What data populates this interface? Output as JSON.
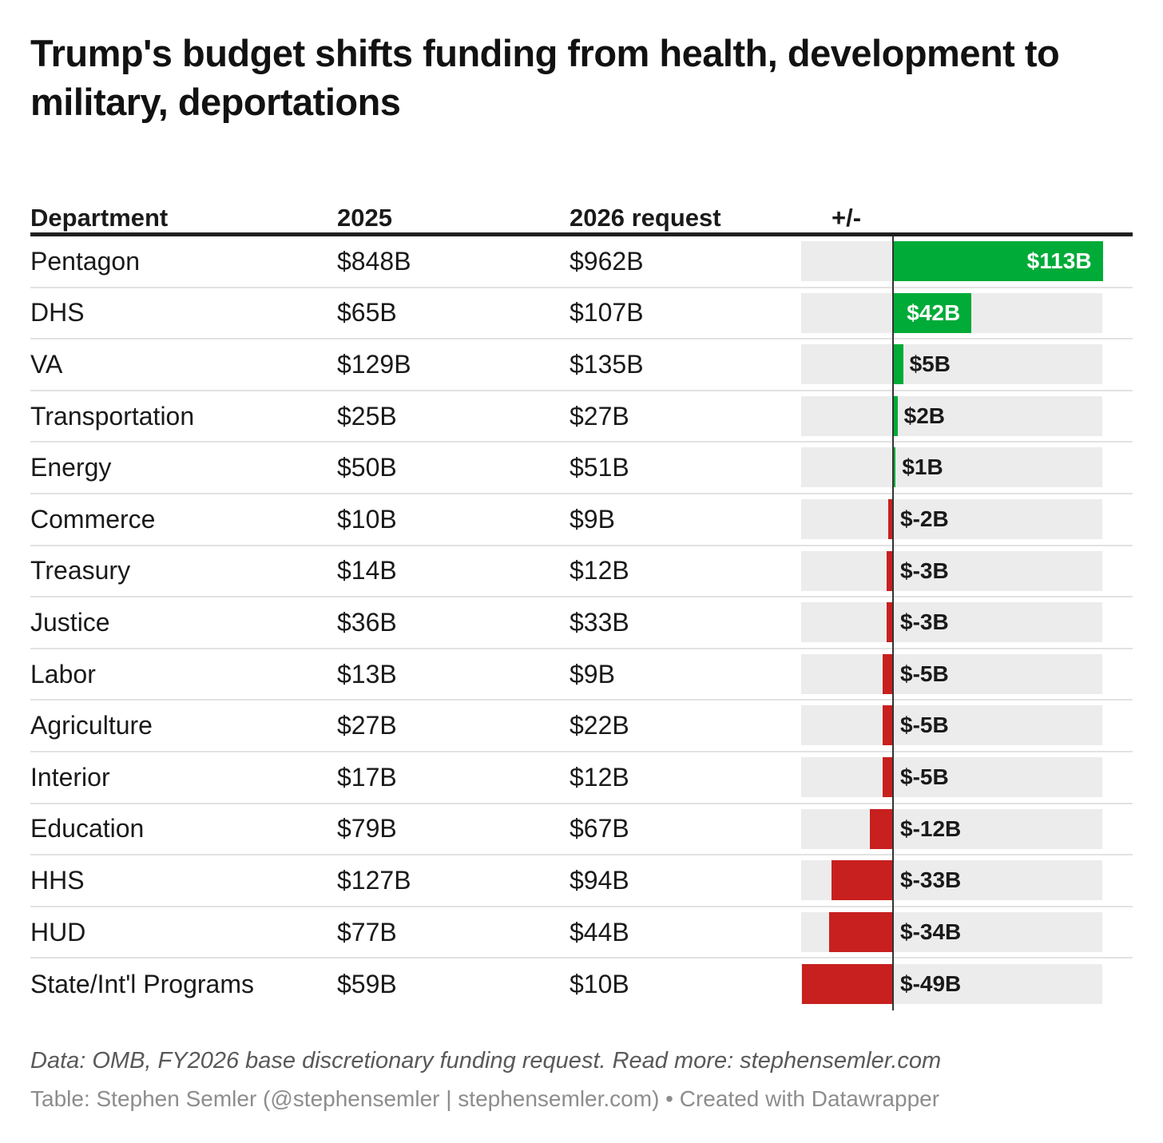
{
  "page": {
    "title": "Trump's budget shifts funding from health, development to military, deportations",
    "footer": {
      "source_line": "Data: OMB, FY2026 base discretionary funding request. Read more: stephensemler.com",
      "byline": "Table: Stephen Semler (@stephensemler | stephensemler.com) • Created with Datawrapper"
    }
  },
  "table": {
    "columns": {
      "department": "Department",
      "fy2025": "2025",
      "fy2026": "2026 request",
      "change": "+/-"
    }
  },
  "chart_data": {
    "type": "table",
    "title": "Trump's budget shifts funding from health, development to military, deportations",
    "columns": [
      "Department",
      "2025",
      "2026 request",
      "+/-"
    ],
    "bar_axis": {
      "unit": "USD billions",
      "min": -50,
      "max": 113,
      "zero_line": true
    },
    "colors": {
      "increase": "#00ab38",
      "decrease": "#c7201f",
      "bar_track": "#ececec"
    },
    "rows": [
      {
        "department": "Pentagon",
        "fy2025": "$848B",
        "fy2026": "$962B",
        "change_billions": 113,
        "change_label": "$113B"
      },
      {
        "department": "DHS",
        "fy2025": "$65B",
        "fy2026": "$107B",
        "change_billions": 42,
        "change_label": "$42B"
      },
      {
        "department": "VA",
        "fy2025": "$129B",
        "fy2026": "$135B",
        "change_billions": 5,
        "change_label": "$5B"
      },
      {
        "department": "Transportation",
        "fy2025": "$25B",
        "fy2026": "$27B",
        "change_billions": 2,
        "change_label": "$2B"
      },
      {
        "department": "Energy",
        "fy2025": "$50B",
        "fy2026": "$51B",
        "change_billions": 1,
        "change_label": "$1B"
      },
      {
        "department": "Commerce",
        "fy2025": "$10B",
        "fy2026": "$9B",
        "change_billions": -2,
        "change_label": "$-2B"
      },
      {
        "department": "Treasury",
        "fy2025": "$14B",
        "fy2026": "$12B",
        "change_billions": -3,
        "change_label": "$-3B"
      },
      {
        "department": "Justice",
        "fy2025": "$36B",
        "fy2026": "$33B",
        "change_billions": -3,
        "change_label": "$-3B"
      },
      {
        "department": "Labor",
        "fy2025": "$13B",
        "fy2026": "$9B",
        "change_billions": -5,
        "change_label": "$-5B"
      },
      {
        "department": "Agriculture",
        "fy2025": "$27B",
        "fy2026": "$22B",
        "change_billions": -5,
        "change_label": "$-5B"
      },
      {
        "department": "Interior",
        "fy2025": "$17B",
        "fy2026": "$12B",
        "change_billions": -5,
        "change_label": "$-5B"
      },
      {
        "department": "Education",
        "fy2025": "$79B",
        "fy2026": "$67B",
        "change_billions": -12,
        "change_label": "$-12B"
      },
      {
        "department": "HHS",
        "fy2025": "$127B",
        "fy2026": "$94B",
        "change_billions": -33,
        "change_label": "$-33B"
      },
      {
        "department": "HUD",
        "fy2025": "$77B",
        "fy2026": "$44B",
        "change_billions": -34,
        "change_label": "$-34B"
      },
      {
        "department": "State/Int'l Programs",
        "fy2025": "$59B",
        "fy2026": "$10B",
        "change_billions": -49,
        "change_label": "$-49B"
      }
    ]
  }
}
